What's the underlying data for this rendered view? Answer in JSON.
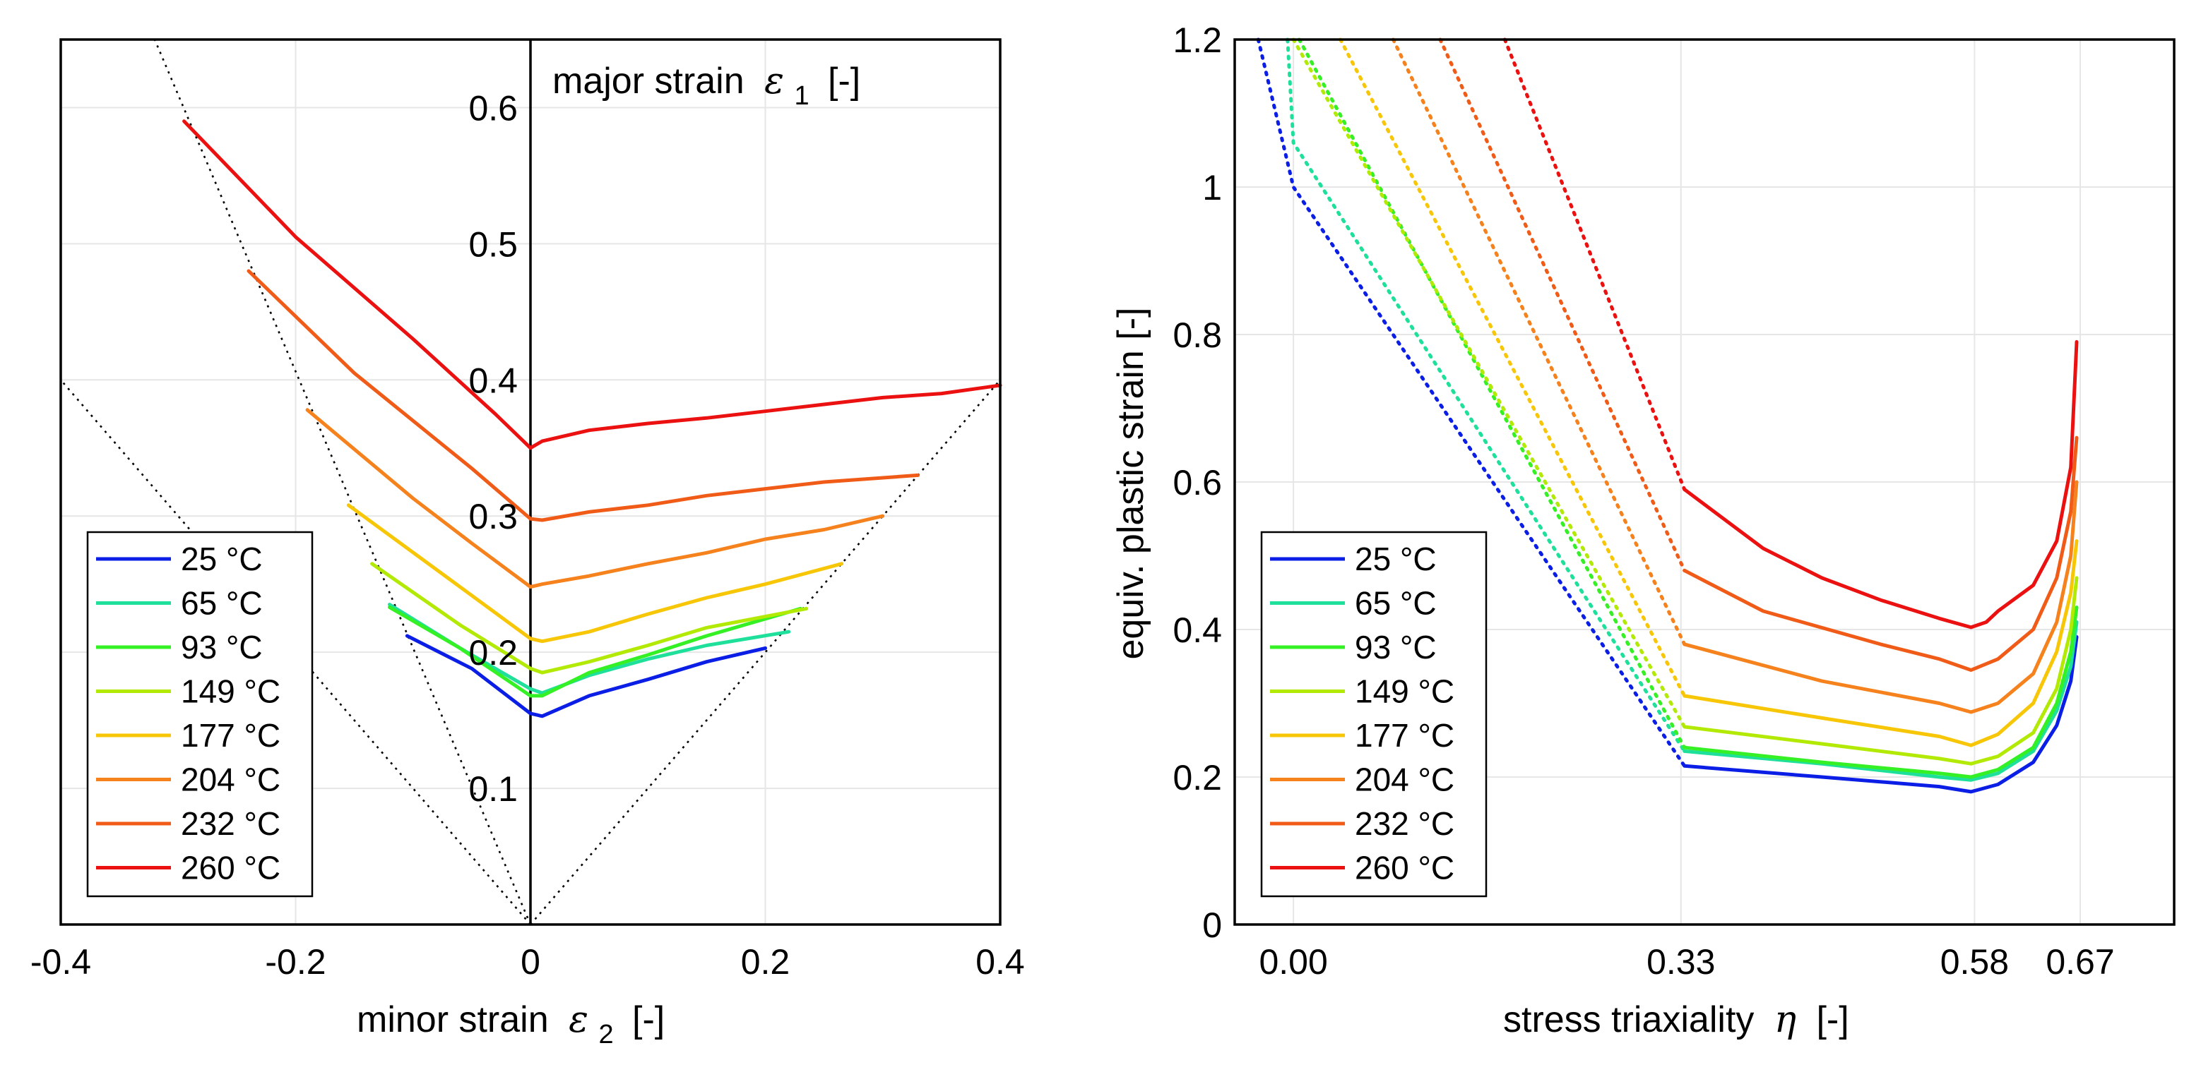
{
  "chart_data": [
    {
      "type": "line",
      "title": "",
      "xlabel": "minor strain",
      "xlabel_symbol": "ε",
      "xlabel_subscript": "2",
      "xlabel_unit": "[-]",
      "ylabel": "major strain",
      "ylabel_symbol": "ε",
      "ylabel_subscript": "1",
      "ylabel_unit": "[-]",
      "xlim": [
        -0.4,
        0.4
      ],
      "ylim": [
        0,
        0.65
      ],
      "x_ticks": [
        -0.4,
        -0.2,
        0,
        0.2,
        0.4
      ],
      "x_tick_labels": [
        "-0.4",
        "-0.2",
        "0",
        "0.2",
        "0.4"
      ],
      "y_ticks": [
        0.1,
        0.2,
        0.3,
        0.4,
        0.5,
        0.6
      ],
      "y_tick_labels": [
        "0.1",
        "0.2",
        "0.3",
        "0.4",
        "0.5",
        "0.6"
      ],
      "grid": true,
      "legend_position": "bottom-left",
      "series": [
        {
          "name": "25 °C",
          "color": "#0a1ee6",
          "x": [
            -0.105,
            -0.05,
            0,
            0.01,
            0.05,
            0.1,
            0.15,
            0.2
          ],
          "y": [
            0.212,
            0.188,
            0.155,
            0.153,
            0.168,
            0.18,
            0.193,
            0.203
          ]
        },
        {
          "name": "65 °C",
          "color": "#1fe09a",
          "x": [
            -0.12,
            -0.06,
            0,
            0.01,
            0.05,
            0.1,
            0.15,
            0.22
          ],
          "y": [
            0.235,
            0.203,
            0.173,
            0.17,
            0.183,
            0.195,
            0.205,
            0.215
          ]
        },
        {
          "name": "93 °C",
          "color": "#35f024",
          "x": [
            -0.12,
            -0.06,
            0,
            0.01,
            0.05,
            0.1,
            0.15,
            0.23
          ],
          "y": [
            0.233,
            0.203,
            0.168,
            0.168,
            0.185,
            0.198,
            0.212,
            0.232
          ]
        },
        {
          "name": "149 °C",
          "color": "#b2ea05",
          "x": [
            -0.135,
            -0.06,
            0,
            0.01,
            0.05,
            0.1,
            0.15,
            0.235
          ],
          "y": [
            0.265,
            0.22,
            0.188,
            0.185,
            0.193,
            0.205,
            0.218,
            0.232
          ]
        },
        {
          "name": "177 °C",
          "color": "#f7c606",
          "x": [
            -0.155,
            -0.06,
            0,
            0.01,
            0.05,
            0.1,
            0.15,
            0.2,
            0.265
          ],
          "y": [
            0.308,
            0.248,
            0.21,
            0.208,
            0.215,
            0.228,
            0.24,
            0.25,
            0.265
          ]
        },
        {
          "name": "204 °C",
          "color": "#f5821c",
          "x": [
            -0.19,
            -0.1,
            -0.05,
            0,
            0.01,
            0.05,
            0.1,
            0.15,
            0.2,
            0.25,
            0.3
          ],
          "y": [
            0.378,
            0.313,
            0.28,
            0.248,
            0.25,
            0.256,
            0.265,
            0.273,
            0.283,
            0.29,
            0.3
          ]
        },
        {
          "name": "232 °C",
          "color": "#f15b18",
          "x": [
            -0.24,
            -0.15,
            -0.05,
            0,
            0.01,
            0.05,
            0.1,
            0.15,
            0.2,
            0.25,
            0.33
          ],
          "y": [
            0.48,
            0.405,
            0.335,
            0.298,
            0.297,
            0.303,
            0.308,
            0.315,
            0.32,
            0.325,
            0.33
          ]
        },
        {
          "name": "260 °C",
          "color": "#ec1111",
          "x": [
            -0.295,
            -0.2,
            -0.1,
            -0.03,
            0,
            0.01,
            0.05,
            0.1,
            0.15,
            0.2,
            0.25,
            0.3,
            0.35,
            0.4
          ],
          "y": [
            0.59,
            0.505,
            0.43,
            0.375,
            0.35,
            0.355,
            0.363,
            0.368,
            0.372,
            0.377,
            0.382,
            0.387,
            0.39,
            0.396
          ]
        }
      ],
      "reference_lines": [
        {
          "from": [
            0,
            0
          ],
          "to": [
            -0.32,
            0.65
          ]
        },
        {
          "from": [
            0,
            0
          ],
          "to": [
            -0.4,
            0.4
          ]
        },
        {
          "from": [
            0,
            0
          ],
          "to": [
            0.4,
            0.4
          ]
        }
      ]
    },
    {
      "type": "line",
      "title": "",
      "xlabel": "stress triaxiality",
      "xlabel_symbol": "η",
      "xlabel_unit": "[-]",
      "ylabel": "equiv. plastic strain [-]",
      "xlim": [
        -0.05,
        0.75
      ],
      "ylim": [
        0,
        1.2
      ],
      "x_ticks": [
        0,
        0.33,
        0.58,
        0.67
      ],
      "x_tick_labels": [
        "0.00",
        "0.33",
        "0.58",
        "0.67"
      ],
      "y_ticks": [
        0,
        0.2,
        0.4,
        0.6,
        0.8,
        1,
        1.2
      ],
      "y_tick_labels": [
        "0",
        "0.2",
        "0.4",
        "0.6",
        "0.8",
        "1",
        "1.2"
      ],
      "grid": true,
      "legend_position": "bottom-left",
      "series": [
        {
          "name": "25 °C",
          "color": "#0a1ee6",
          "extrapolated": {
            "x": [
              -0.03,
              0,
              0.333
            ],
            "y": [
              1.2,
              1.0,
              0.215
            ]
          },
          "measured": {
            "x": [
              0.333,
              0.45,
              0.55,
              0.577,
              0.6,
              0.63,
              0.65,
              0.662,
              0.667
            ],
            "y": [
              0.215,
              0.2,
              0.187,
              0.18,
              0.19,
              0.22,
              0.27,
              0.33,
              0.39
            ]
          }
        },
        {
          "name": "65 °C",
          "color": "#1fe09a",
          "extrapolated": {
            "x": [
              -0.005,
              0,
              0.333
            ],
            "y": [
              1.2,
              1.06,
              0.235
            ]
          },
          "measured": {
            "x": [
              0.333,
              0.45,
              0.55,
              0.577,
              0.6,
              0.63,
              0.65,
              0.662,
              0.667
            ],
            "y": [
              0.235,
              0.218,
              0.2,
              0.196,
              0.205,
              0.235,
              0.29,
              0.35,
              0.41
            ]
          }
        },
        {
          "name": "93 °C",
          "color": "#35f024",
          "extrapolated": {
            "x": [
              0.005,
              0.333
            ],
            "y": [
              1.2,
              0.24
            ]
          },
          "measured": {
            "x": [
              0.333,
              0.45,
              0.55,
              0.577,
              0.6,
              0.63,
              0.65,
              0.662,
              0.667
            ],
            "y": [
              0.24,
              0.22,
              0.205,
              0.2,
              0.21,
              0.24,
              0.3,
              0.37,
              0.43
            ]
          }
        },
        {
          "name": "149 °C",
          "color": "#b2ea05",
          "extrapolated": {
            "x": [
              0.0,
              0.333
            ],
            "y": [
              1.2,
              0.268
            ]
          },
          "measured": {
            "x": [
              0.333,
              0.45,
              0.55,
              0.577,
              0.6,
              0.63,
              0.65,
              0.662,
              0.667
            ],
            "y": [
              0.268,
              0.245,
              0.225,
              0.218,
              0.228,
              0.26,
              0.32,
              0.4,
              0.47
            ]
          }
        },
        {
          "name": "177 °C",
          "color": "#f7c606",
          "extrapolated": {
            "x": [
              0.04,
              0.333
            ],
            "y": [
              1.2,
              0.31
            ]
          },
          "measured": {
            "x": [
              0.333,
              0.45,
              0.55,
              0.577,
              0.6,
              0.63,
              0.65,
              0.662,
              0.667
            ],
            "y": [
              0.31,
              0.28,
              0.255,
              0.243,
              0.258,
              0.3,
              0.37,
              0.45,
              0.52
            ]
          }
        },
        {
          "name": "204 °C",
          "color": "#f5821c",
          "extrapolated": {
            "x": [
              0.085,
              0.333
            ],
            "y": [
              1.2,
              0.38
            ]
          },
          "measured": {
            "x": [
              0.333,
              0.45,
              0.55,
              0.577,
              0.6,
              0.63,
              0.65,
              0.662,
              0.667
            ],
            "y": [
              0.38,
              0.33,
              0.3,
              0.288,
              0.3,
              0.34,
              0.41,
              0.5,
              0.6
            ]
          }
        },
        {
          "name": "232 °C",
          "color": "#f15b18",
          "extrapolated": {
            "x": [
              0.125,
              0.333
            ],
            "y": [
              1.2,
              0.48
            ]
          },
          "measured": {
            "x": [
              0.333,
              0.4,
              0.5,
              0.55,
              0.577,
              0.6,
              0.63,
              0.65,
              0.662,
              0.667
            ],
            "y": [
              0.48,
              0.425,
              0.38,
              0.36,
              0.345,
              0.36,
              0.4,
              0.47,
              0.56,
              0.66
            ]
          }
        },
        {
          "name": "260 °C",
          "color": "#ec1111",
          "extrapolated": {
            "x": [
              0.18,
              0.333
            ],
            "y": [
              1.2,
              0.59
            ]
          },
          "measured": {
            "x": [
              0.333,
              0.4,
              0.45,
              0.5,
              0.55,
              0.577,
              0.59,
              0.6,
              0.63,
              0.65,
              0.662,
              0.667
            ],
            "y": [
              0.59,
              0.51,
              0.47,
              0.44,
              0.415,
              0.403,
              0.41,
              0.425,
              0.46,
              0.52,
              0.62,
              0.79
            ]
          }
        }
      ]
    }
  ]
}
